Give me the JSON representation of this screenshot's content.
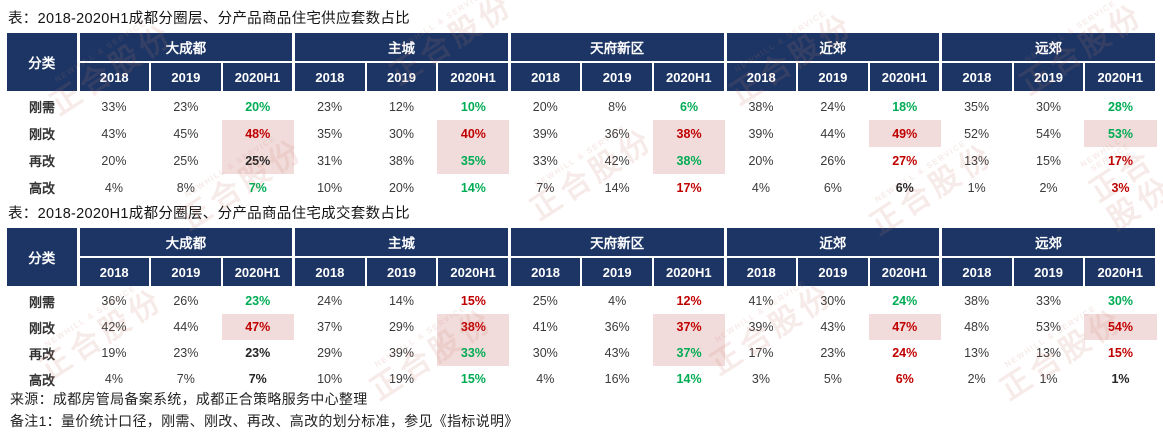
{
  "titles": {
    "table1": "表：2018-2020H1成都分圈层、分产品商品住宅供应套数占比",
    "table2": "表：2018-2020H1成都分圈层、分产品商品住宅成交套数占比"
  },
  "colors": {
    "header_navy": "#1c3564",
    "highlight_pink": "#f2dcdb",
    "positive_green": "#00ac54",
    "negative_red": "#c00000"
  },
  "tables": [
    {
      "title": "表：2018-2020H1成都分圈层、分产品商品住宅供应套数占比",
      "corner": "分类",
      "regions": [
        "大成都",
        "主城",
        "天府新区",
        "近郊",
        "远郊"
      ],
      "years": [
        "2018",
        "2019",
        "2020H1"
      ],
      "rows": [
        {
          "label": "刚需",
          "values": [
            "33%",
            "23%",
            "20%",
            "23%",
            "12%",
            "10%",
            "20%",
            "8%",
            "6%",
            "38%",
            "24%",
            "18%",
            "35%",
            "30%",
            "28%"
          ],
          "styles": [
            "d",
            "d",
            "g",
            "d",
            "d",
            "g",
            "d",
            "d",
            "g",
            "d",
            "d",
            "g",
            "d",
            "d",
            "g"
          ]
        },
        {
          "label": "刚改",
          "values": [
            "43%",
            "45%",
            "48%",
            "35%",
            "30%",
            "40%",
            "39%",
            "36%",
            "38%",
            "39%",
            "44%",
            "49%",
            "52%",
            "54%",
            "53%"
          ],
          "styles": [
            "d",
            "d",
            "rh",
            "d",
            "d",
            "rh",
            "d",
            "d",
            "rh",
            "d",
            "d",
            "rh",
            "d",
            "d",
            "gh"
          ]
        },
        {
          "label": "再改",
          "values": [
            "20%",
            "25%",
            "25%",
            "31%",
            "38%",
            "35%",
            "33%",
            "42%",
            "38%",
            "20%",
            "26%",
            "27%",
            "13%",
            "15%",
            "17%"
          ],
          "styles": [
            "d",
            "d",
            "kh",
            "d",
            "d",
            "gh",
            "d",
            "d",
            "gh",
            "d",
            "d",
            "r",
            "d",
            "d",
            "r"
          ]
        },
        {
          "label": "高改",
          "values": [
            "4%",
            "8%",
            "7%",
            "10%",
            "20%",
            "14%",
            "7%",
            "14%",
            "17%",
            "4%",
            "6%",
            "6%",
            "1%",
            "2%",
            "3%"
          ],
          "styles": [
            "d",
            "d",
            "g",
            "d",
            "d",
            "g",
            "d",
            "d",
            "r",
            "d",
            "d",
            "k",
            "d",
            "d",
            "r"
          ]
        }
      ]
    },
    {
      "title": "表：2018-2020H1成都分圈层、分产品商品住宅成交套数占比",
      "corner": "分类",
      "regions": [
        "大成都",
        "主城",
        "天府新区",
        "近郊",
        "远郊"
      ],
      "years": [
        "2018",
        "2019",
        "2020H1"
      ],
      "rows": [
        {
          "label": "刚需",
          "values": [
            "36%",
            "26%",
            "23%",
            "24%",
            "14%",
            "15%",
            "25%",
            "4%",
            "12%",
            "41%",
            "30%",
            "24%",
            "38%",
            "33%",
            "30%"
          ],
          "styles": [
            "d",
            "d",
            "g",
            "d",
            "d",
            "r",
            "d",
            "d",
            "r",
            "d",
            "d",
            "g",
            "d",
            "d",
            "g"
          ]
        },
        {
          "label": "刚改",
          "values": [
            "42%",
            "44%",
            "47%",
            "37%",
            "29%",
            "38%",
            "41%",
            "36%",
            "37%",
            "39%",
            "43%",
            "47%",
            "48%",
            "53%",
            "54%"
          ],
          "styles": [
            "d",
            "d",
            "rh",
            "d",
            "d",
            "rh",
            "d",
            "d",
            "rh",
            "d",
            "d",
            "rh",
            "d",
            "d",
            "rh"
          ]
        },
        {
          "label": "再改",
          "values": [
            "19%",
            "23%",
            "23%",
            "29%",
            "39%",
            "33%",
            "30%",
            "43%",
            "37%",
            "17%",
            "23%",
            "24%",
            "13%",
            "13%",
            "15%"
          ],
          "styles": [
            "d",
            "d",
            "k",
            "d",
            "d",
            "gh",
            "d",
            "d",
            "gh",
            "d",
            "d",
            "r",
            "d",
            "d",
            "r"
          ]
        },
        {
          "label": "高改",
          "values": [
            "4%",
            "7%",
            "7%",
            "10%",
            "19%",
            "15%",
            "4%",
            "16%",
            "14%",
            "3%",
            "5%",
            "6%",
            "2%",
            "1%",
            "1%"
          ],
          "styles": [
            "d",
            "d",
            "k",
            "d",
            "d",
            "g",
            "d",
            "d",
            "g",
            "d",
            "d",
            "r",
            "d",
            "d",
            "k"
          ]
        }
      ]
    }
  ],
  "footer": {
    "source": "来源：成都房管局备案系统，成都正合策略服务中心整理",
    "note": "备注1：量价统计口径，刚需、刚改、再改、高改的划分标准，参见《指标说明》"
  },
  "watermark": {
    "zh": "正合股份",
    "en": "NEWHILL & SERVICE"
  }
}
